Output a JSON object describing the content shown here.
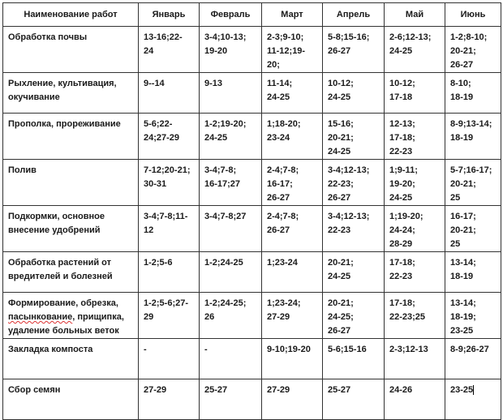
{
  "table": {
    "headers": [
      "Наименование работ",
      "Январь",
      "Февраль",
      "Март",
      "Апрель",
      "Май",
      "Июнь"
    ],
    "rows": [
      {
        "name": "Обработка почвы",
        "cells": [
          "13-16;22-\n24",
          "3-4;10-13;\n19-20",
          "2-3;9-10;\n11-12;19-\n20;",
          "5-8;15-16;\n26-27",
          "2-6;12-13;\n24-25",
          "1-2;8-10;\n20-21;\n26-27"
        ]
      },
      {
        "name": "Рыхление, культивация,\nокучивание",
        "cells": [
          "9--14",
          "9-13",
          "11-14;\n24-25",
          "10-12;\n24-25",
          "10-12;\n17-18",
          "8-10;\n18-19"
        ]
      },
      {
        "name": "Прополка, прореживание",
        "cells": [
          "5-6;22-\n24;27-29",
          "1-2;19-20;\n24-25",
          "1;18-20;\n23-24",
          "15-16;\n20-21;\n24-25",
          "12-13;\n17-18;\n22-23",
          "8-9;13-14;\n18-19"
        ]
      },
      {
        "name": "Полив",
        "cells": [
          "7-12;20-21;\n30-31",
          "3-4;7-8;\n16-17;27",
          "2-4;7-8;\n16-17;\n26-27",
          "3-4;12-13;\n22-23;\n26-27",
          "1;9-11;\n19-20;\n24-25",
          "5-7;16-17;\n20-21;\n25"
        ]
      },
      {
        "name": "Подкормки, основное\nвнесение удобрений",
        "cells": [
          "3-4;7-8;11-\n12",
          "3-4;7-8;27",
          "2-4;7-8;\n26-27",
          "3-4;12-13;\n22-23",
          "1;19-20;\n24-24;\n28-29",
          "16-17;\n20-21;\n25"
        ]
      },
      {
        "name": "Обработка растений от\nвредителей и болезней",
        "cells": [
          "1-2;5-6",
          "1-2;24-25",
          "1;23-24",
          "20-21;\n24-25",
          "17-18;\n22-23",
          "13-14;\n18-19"
        ]
      },
      {
        "name": "Формирование, обрезка,\nпасынкование, прищипка,\nудаление больных веток",
        "cells": [
          "1-2;5-6;27-\n29",
          "1-2;24-25;\n26",
          "1;23-24;\n27-29",
          "20-21;\n24-25;\n26-27",
          "17-18;\n22-23;25",
          "13-14;\n18-19;\n23-25"
        ]
      },
      {
        "name": "Закладка компоста",
        "cells": [
          "-",
          "-",
          "9-10;19-20",
          "5-6;15-16",
          "2-3;12-13",
          "8-9;26-27"
        ]
      },
      {
        "name": "Сбор семян",
        "cells": [
          "27-29",
          "25-27",
          "27-29",
          "25-27",
          "24-26",
          "23-25"
        ]
      }
    ]
  }
}
